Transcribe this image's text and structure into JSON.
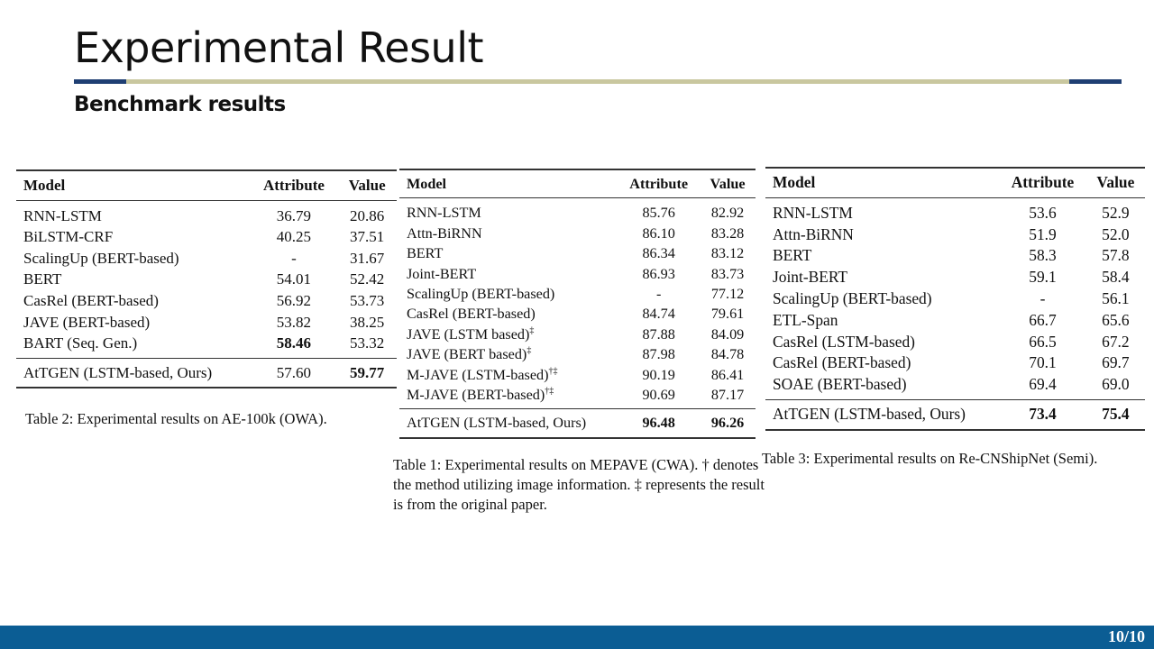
{
  "slide": {
    "title": "Experimental Result",
    "subtitle": "Benchmark results",
    "page_number": "10/10",
    "colors": {
      "accent_dark": "#1f3f73",
      "accent_light": "#c9c79f",
      "footer": "#0b5d94"
    }
  },
  "table2": {
    "headers": [
      "Model",
      "Attribute",
      "Value"
    ],
    "rows": [
      [
        "RNN-LSTM",
        "36.79",
        "20.86"
      ],
      [
        "BiLSTM-CRF",
        "40.25",
        "37.51"
      ],
      [
        "ScalingUp (BERT-based)",
        "-",
        "31.67"
      ],
      [
        "BERT",
        "54.01",
        "52.42"
      ],
      [
        "CasRel (BERT-based)",
        "56.92",
        "53.73"
      ],
      [
        "JAVE (BERT-based)",
        "53.82",
        "38.25"
      ],
      [
        "BART (Seq. Gen.)",
        "58.46",
        "53.32"
      ]
    ],
    "final": [
      "AtTGEN (LSTM-based, Ours)",
      "57.60",
      "59.77"
    ],
    "caption": "Table 2: Experimental results on AE-100k (OWA)."
  },
  "table1": {
    "headers": [
      "Model",
      "Attribute",
      "Value"
    ],
    "rows": [
      [
        "RNN-LSTM",
        "85.76",
        "82.92"
      ],
      [
        "Attn-BiRNN",
        "86.10",
        "83.28"
      ],
      [
        "BERT",
        "86.34",
        "83.12"
      ],
      [
        "Joint-BERT",
        "86.93",
        "83.73"
      ],
      [
        "ScalingUp (BERT-based)",
        "-",
        "77.12"
      ],
      [
        "CasRel (BERT-based)",
        "84.74",
        "79.61"
      ],
      [
        "JAVE (LSTM based)",
        "87.88",
        "84.09"
      ],
      [
        "JAVE (BERT based)",
        "87.98",
        "84.78"
      ],
      [
        "M-JAVE (LSTM-based)",
        "90.19",
        "86.41"
      ],
      [
        "M-JAVE (BERT-based)",
        "90.69",
        "87.17"
      ]
    ],
    "marks": [
      "",
      "",
      "",
      "",
      "",
      "",
      "‡",
      "‡",
      "†‡",
      "†‡"
    ],
    "final": [
      "AtTGEN (LSTM-based, Ours)",
      "96.48",
      "96.26"
    ],
    "caption": "Table 1: Experimental results on MEPAVE (CWA). † denotes the method utilizing image information. ‡ represents the result is from the original paper."
  },
  "table3": {
    "headers": [
      "Model",
      "Attribute",
      "Value"
    ],
    "rows": [
      [
        "RNN-LSTM",
        "53.6",
        "52.9"
      ],
      [
        "Attn-BiRNN",
        "51.9",
        "52.0"
      ],
      [
        "BERT",
        "58.3",
        "57.8"
      ],
      [
        "Joint-BERT",
        "59.1",
        "58.4"
      ],
      [
        "ScalingUp (BERT-based)",
        "-",
        "56.1"
      ],
      [
        "ETL-Span",
        "66.7",
        "65.6"
      ],
      [
        "CasRel (LSTM-based)",
        "66.5",
        "67.2"
      ],
      [
        "CasRel (BERT-based)",
        "70.1",
        "69.7"
      ],
      [
        "SOAE (BERT-based)",
        "69.4",
        "69.0"
      ]
    ],
    "final": [
      "AtTGEN (LSTM-based, Ours)",
      "73.4",
      "75.4"
    ],
    "caption": "Table 3: Experimental results on Re-CNShipNet (Semi)."
  }
}
